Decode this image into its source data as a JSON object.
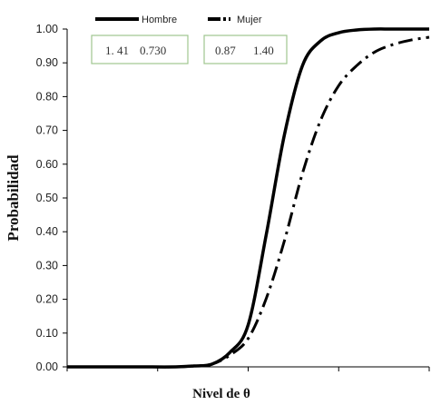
{
  "chart_data": {
    "type": "line",
    "xlabel": "Nivel de θ",
    "ylabel": "Probabilidad",
    "ylim": [
      0,
      1
    ],
    "y_ticks": [
      "0.00",
      "0.10",
      "0.20",
      "0.30",
      "0.40",
      "0.50",
      "0.60",
      "0.70",
      "0.80",
      "0.90",
      "1.00"
    ],
    "x_tick_labels_shown": false,
    "grid": false,
    "legend_position": "top-left",
    "series": [
      {
        "name": "Hombre",
        "style": "solid-thick",
        "color": "#000000",
        "params": [
          "1. 41",
          "0.730"
        ],
        "curve": [
          [
            0.0,
            0.0
          ],
          [
            0.1,
            0.0
          ],
          [
            0.2,
            0.0
          ],
          [
            0.3,
            0.0
          ],
          [
            0.35,
            0.0027
          ],
          [
            0.4,
            0.0081
          ],
          [
            0.45,
            0.0432
          ],
          [
            0.5,
            0.1243
          ],
          [
            0.55,
            0.3919
          ],
          [
            0.6,
            0.6865
          ],
          [
            0.65,
            0.8919
          ],
          [
            0.7,
            0.9649
          ],
          [
            0.75,
            0.9892
          ],
          [
            0.8,
            0.9973
          ],
          [
            0.85,
            1.0
          ],
          [
            0.9,
            1.0
          ],
          [
            1.0,
            1.0
          ]
        ]
      },
      {
        "name": "Mujer",
        "style": "dash-dot",
        "color": "#000000",
        "params": [
          "0.87",
          "1.40"
        ],
        "curve": [
          [
            0.0,
            0.0
          ],
          [
            0.2,
            0.0
          ],
          [
            0.3,
            0.0
          ],
          [
            0.35,
            0.0027
          ],
          [
            0.4,
            0.0081
          ],
          [
            0.45,
            0.0351
          ],
          [
            0.5,
            0.0838
          ],
          [
            0.55,
            0.2027
          ],
          [
            0.6,
            0.373
          ],
          [
            0.65,
            0.573
          ],
          [
            0.7,
            0.7297
          ],
          [
            0.75,
            0.8324
          ],
          [
            0.8,
            0.8919
          ],
          [
            0.85,
            0.9324
          ],
          [
            0.9,
            0.9541
          ],
          [
            0.95,
            0.9676
          ],
          [
            1.0,
            0.9757
          ]
        ]
      }
    ]
  }
}
